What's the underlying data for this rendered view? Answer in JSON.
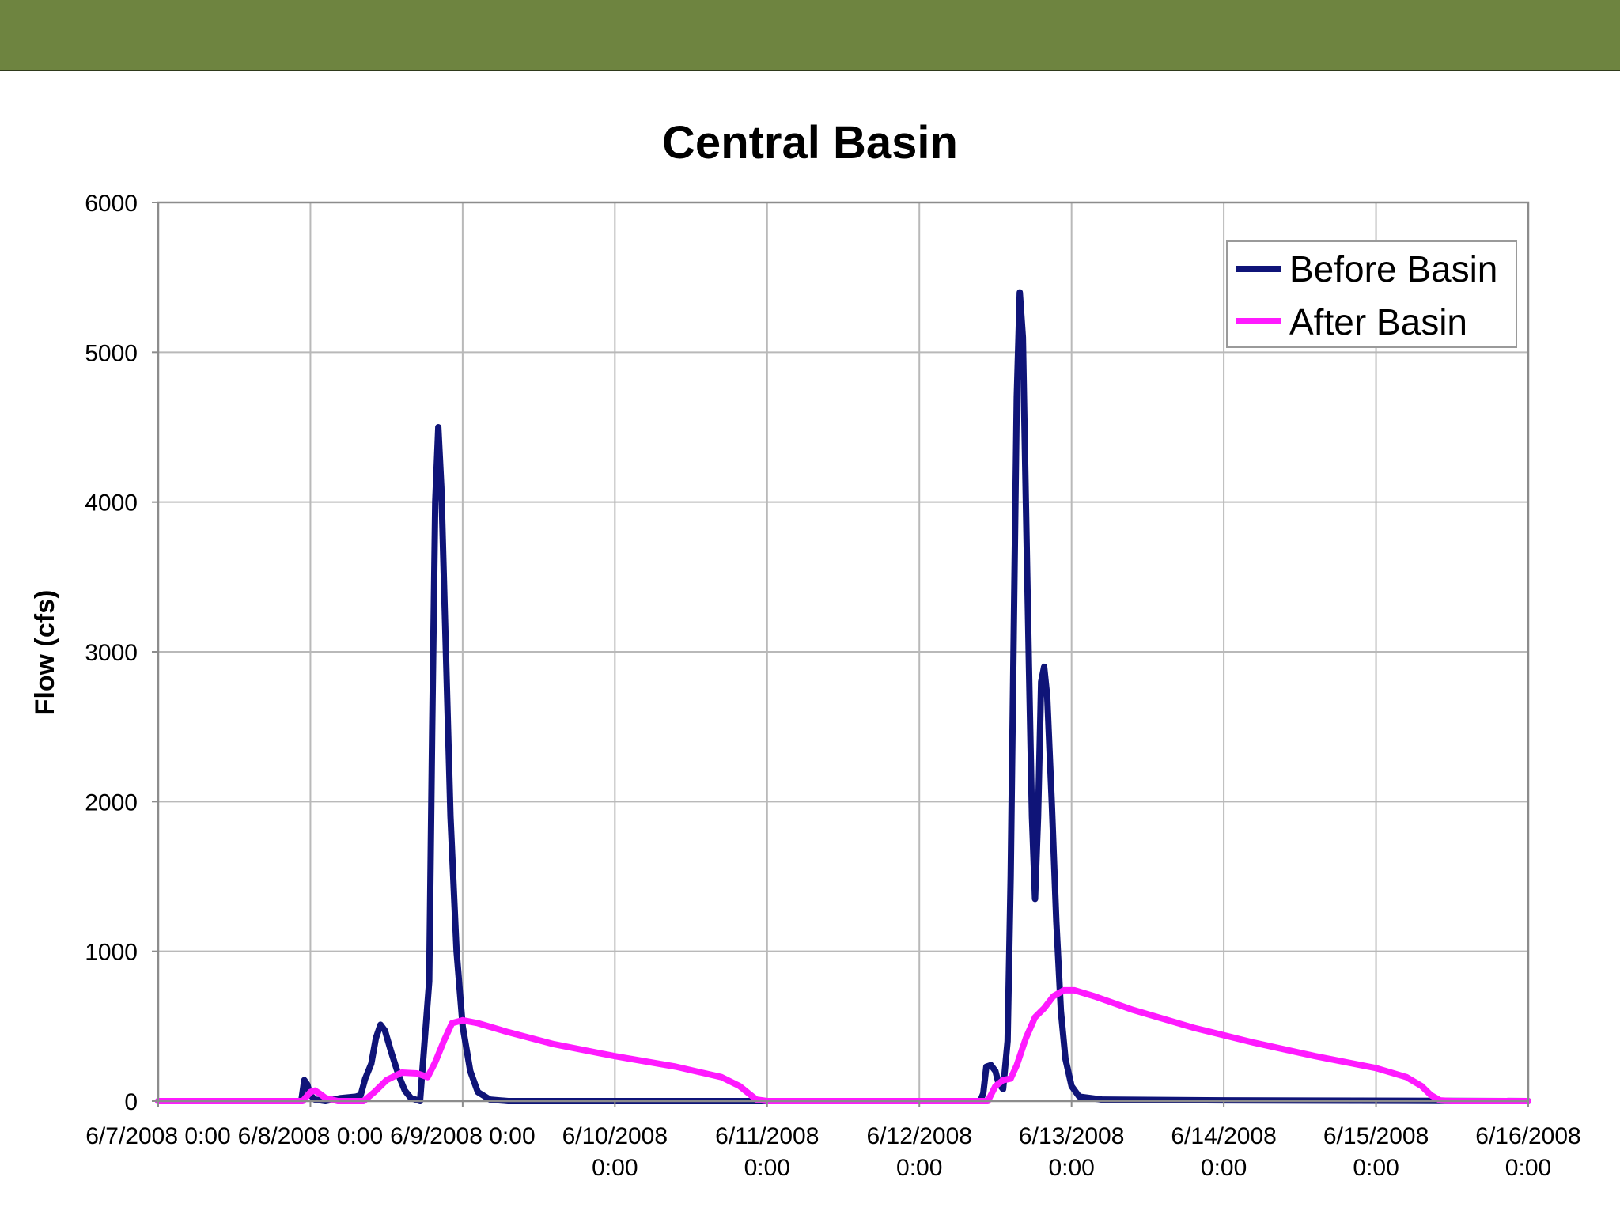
{
  "colors": {
    "banner": "#6e8440",
    "before": "#0f1478",
    "after": "#ff1aff"
  },
  "chart_data": {
    "type": "line",
    "title": "Central Basin",
    "xlabel": "",
    "ylabel": "Flow (cfs)",
    "x_unit": "days since 6/7/2008 0:00",
    "xlim": [
      0,
      9
    ],
    "ylim": [
      0,
      6000
    ],
    "yticks": [
      0,
      1000,
      2000,
      3000,
      4000,
      5000,
      6000
    ],
    "xtick_labels": [
      [
        "6/7/2008 0:00"
      ],
      [
        "6/8/2008 0:00"
      ],
      [
        "6/9/2008 0:00"
      ],
      [
        "6/10/2008",
        "0:00"
      ],
      [
        "6/11/2008",
        "0:00"
      ],
      [
        "6/12/2008",
        "0:00"
      ],
      [
        "6/13/2008",
        "0:00"
      ],
      [
        "6/14/2008",
        "0:00"
      ],
      [
        "6/15/2008",
        "0:00"
      ],
      [
        "6/16/2008",
        "0:00"
      ]
    ],
    "grid": true,
    "legend_position": "top-right",
    "series": [
      {
        "name": "Before Basin",
        "color": "#0f1478",
        "points": [
          [
            0,
            0
          ],
          [
            0.9,
            0
          ],
          [
            0.94,
            0
          ],
          [
            0.96,
            140
          ],
          [
            0.98,
            110
          ],
          [
            1.0,
            40
          ],
          [
            1.03,
            10
          ],
          [
            1.1,
            0
          ],
          [
            1.2,
            20
          ],
          [
            1.3,
            30
          ],
          [
            1.33,
            40
          ],
          [
            1.36,
            150
          ],
          [
            1.4,
            250
          ],
          [
            1.43,
            420
          ],
          [
            1.46,
            510
          ],
          [
            1.49,
            470
          ],
          [
            1.53,
            330
          ],
          [
            1.58,
            170
          ],
          [
            1.62,
            70
          ],
          [
            1.66,
            20
          ],
          [
            1.72,
            0
          ],
          [
            1.78,
            800
          ],
          [
            1.8,
            2500
          ],
          [
            1.82,
            4000
          ],
          [
            1.84,
            4500
          ],
          [
            1.86,
            4100
          ],
          [
            1.89,
            3000
          ],
          [
            1.92,
            1900
          ],
          [
            1.96,
            1000
          ],
          [
            2.0,
            500
          ],
          [
            2.05,
            200
          ],
          [
            2.1,
            60
          ],
          [
            2.18,
            10
          ],
          [
            2.3,
            0
          ],
          [
            5.4,
            0
          ],
          [
            5.42,
            50
          ],
          [
            5.44,
            230
          ],
          [
            5.47,
            240
          ],
          [
            5.5,
            200
          ],
          [
            5.52,
            120
          ],
          [
            5.55,
            80
          ],
          [
            5.58,
            400
          ],
          [
            5.6,
            1500
          ],
          [
            5.62,
            3100
          ],
          [
            5.64,
            4700
          ],
          [
            5.66,
            5400
          ],
          [
            5.68,
            5100
          ],
          [
            5.7,
            4000
          ],
          [
            5.72,
            2900
          ],
          [
            5.74,
            1900
          ],
          [
            5.76,
            1350
          ],
          [
            5.78,
            1900
          ],
          [
            5.8,
            2800
          ],
          [
            5.82,
            2900
          ],
          [
            5.84,
            2700
          ],
          [
            5.87,
            2000
          ],
          [
            5.9,
            1200
          ],
          [
            5.93,
            600
          ],
          [
            5.96,
            280
          ],
          [
            6.0,
            100
          ],
          [
            6.05,
            30
          ],
          [
            6.2,
            10
          ],
          [
            7.0,
            5
          ],
          [
            9,
            0
          ]
        ]
      },
      {
        "name": "After Basin",
        "color": "#ff1aff",
        "points": [
          [
            0,
            0
          ],
          [
            0.95,
            0
          ],
          [
            1.0,
            60
          ],
          [
            1.03,
            70
          ],
          [
            1.06,
            50
          ],
          [
            1.1,
            20
          ],
          [
            1.18,
            0
          ],
          [
            1.35,
            0
          ],
          [
            1.42,
            60
          ],
          [
            1.5,
            140
          ],
          [
            1.6,
            190
          ],
          [
            1.7,
            185
          ],
          [
            1.77,
            160
          ],
          [
            1.82,
            260
          ],
          [
            1.88,
            410
          ],
          [
            1.93,
            520
          ],
          [
            2.0,
            540
          ],
          [
            2.1,
            520
          ],
          [
            2.3,
            460
          ],
          [
            2.6,
            380
          ],
          [
            3.0,
            300
          ],
          [
            3.4,
            230
          ],
          [
            3.7,
            160
          ],
          [
            3.82,
            100
          ],
          [
            3.88,
            50
          ],
          [
            3.93,
            10
          ],
          [
            4.0,
            0
          ],
          [
            5.0,
            0
          ],
          [
            5.45,
            0
          ],
          [
            5.5,
            100
          ],
          [
            5.55,
            140
          ],
          [
            5.6,
            150
          ],
          [
            5.64,
            240
          ],
          [
            5.7,
            420
          ],
          [
            5.76,
            560
          ],
          [
            5.82,
            620
          ],
          [
            5.88,
            700
          ],
          [
            5.95,
            740
          ],
          [
            6.02,
            740
          ],
          [
            6.15,
            700
          ],
          [
            6.4,
            610
          ],
          [
            6.8,
            490
          ],
          [
            7.2,
            390
          ],
          [
            7.6,
            300
          ],
          [
            8.0,
            220
          ],
          [
            8.2,
            160
          ],
          [
            8.3,
            100
          ],
          [
            8.36,
            40
          ],
          [
            8.42,
            5
          ],
          [
            8.5,
            0
          ],
          [
            9,
            0
          ]
        ]
      }
    ]
  }
}
